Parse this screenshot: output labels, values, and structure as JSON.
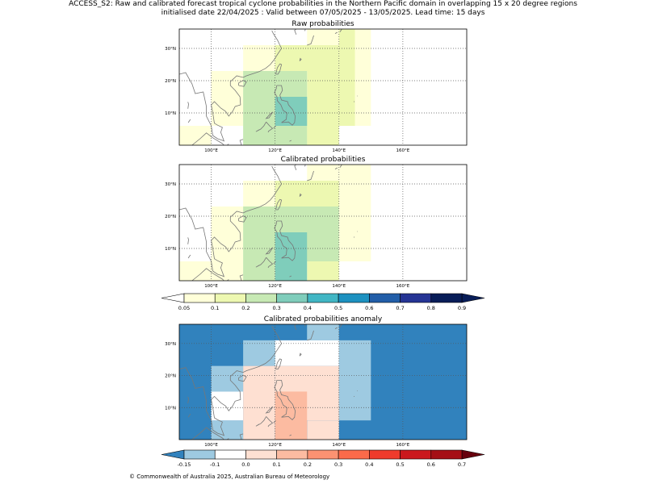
{
  "header": {
    "title_line1": "ACCESS_S2: Raw and calibrated forecast tropical cyclone probabilities in the Northern Pacific domain in overlapping 15 x 20 degree regions",
    "title_line2": "initialised date 22/04/2025 :  Valid between 07/05/2025 - 13/05/2025. Lead time: 15 days"
  },
  "footer": {
    "copyright": "© Commonwealth of Australia 2025, Australian Bureau of Meteorology"
  },
  "colors": {
    "prob_bins": [
      "#ffffd9",
      "#edf8b1",
      "#c7e9b4",
      "#7fcdbb",
      "#41b6c4",
      "#1d91c0",
      "#225ea8",
      "#253494",
      "#081d58"
    ],
    "anom_bins": [
      "#9ecae1",
      "#ffffff",
      "#fee0d2",
      "#fcbba1",
      "#fc9272",
      "#fb6a4a",
      "#ef3b2c",
      "#cb181d",
      "#a50f15"
    ],
    "anom_under": "#3182bd",
    "prob_over": "#081d58",
    "anom_over": "#67000d",
    "coastline": "#777777",
    "gridline": "#555555"
  },
  "chart_data": [
    {
      "type": "heatmap",
      "title": "Raw probabilities",
      "xlim": [
        90,
        180
      ],
      "ylim": [
        0,
        36
      ],
      "x_ticks": [
        100,
        120,
        140,
        160
      ],
      "x_tick_labels": [
        "100°E",
        "120°E",
        "140°E",
        "160°E"
      ],
      "y_ticks": [
        10,
        20,
        30
      ],
      "y_tick_labels": [
        "10°N",
        "20°N",
        "30°N"
      ],
      "grid": true,
      "cells": [
        {
          "lon": [
            90,
            100
          ],
          "lat": [
            0,
            6
          ],
          "value": 0.05
        },
        {
          "lon": [
            100,
            110
          ],
          "lat": [
            6,
            15
          ],
          "value": 0.05
        },
        {
          "lon": [
            100,
            110
          ],
          "lat": [
            15,
            23
          ],
          "value": 0.05
        },
        {
          "lon": [
            110,
            120
          ],
          "lat": [
            23,
            31
          ],
          "value": 0.05
        },
        {
          "lon": [
            140,
            150
          ],
          "lat": [
            6,
            36
          ],
          "value": 0.05
        },
        {
          "lon": [
            130,
            140
          ],
          "lat": [
            31,
            36
          ],
          "value": 0.05
        },
        {
          "lon": [
            120,
            140
          ],
          "lat": [
            23,
            31
          ],
          "value": 0.1
        },
        {
          "lon": [
            140,
            145
          ],
          "lat": [
            6,
            36
          ],
          "value": 0.1
        },
        {
          "lon": [
            130,
            140
          ],
          "lat": [
            0,
            23
          ],
          "value": 0.1
        },
        {
          "lon": [
            120,
            130
          ],
          "lat": [
            0,
            6
          ],
          "value": 0.1
        },
        {
          "lon": [
            110,
            130
          ],
          "lat": [
            0,
            23
          ],
          "value": 0.2
        },
        {
          "lon": [
            120,
            130
          ],
          "lat": [
            6,
            15
          ],
          "value": 0.3
        }
      ]
    },
    {
      "type": "heatmap",
      "title": "Calibrated probabilities",
      "xlim": [
        90,
        180
      ],
      "ylim": [
        0,
        36
      ],
      "x_ticks": [
        100,
        120,
        140,
        160
      ],
      "x_tick_labels": [
        "100°E",
        "120°E",
        "140°E",
        "160°E"
      ],
      "y_ticks": [
        10,
        20,
        30
      ],
      "y_tick_labels": [
        "10°N",
        "20°N",
        "30°N"
      ],
      "grid": true,
      "cells": [
        {
          "lon": [
            90,
            110
          ],
          "lat": [
            0,
            6
          ],
          "value": 0.05
        },
        {
          "lon": [
            100,
            110
          ],
          "lat": [
            6,
            23
          ],
          "value": 0.05
        },
        {
          "lon": [
            110,
            120
          ],
          "lat": [
            23,
            31
          ],
          "value": 0.05
        },
        {
          "lon": [
            140,
            150
          ],
          "lat": [
            6,
            36
          ],
          "value": 0.05
        },
        {
          "lon": [
            130,
            140
          ],
          "lat": [
            31,
            36
          ],
          "value": 0.05
        },
        {
          "lon": [
            120,
            140
          ],
          "lat": [
            23,
            31
          ],
          "value": 0.1
        },
        {
          "lon": [
            130,
            140
          ],
          "lat": [
            0,
            6
          ],
          "value": 0.1
        },
        {
          "lon": [
            110,
            140
          ],
          "lat": [
            6,
            23
          ],
          "value": 0.2
        },
        {
          "lon": [
            110,
            120
          ],
          "lat": [
            0,
            6
          ],
          "value": 0.2
        },
        {
          "lon": [
            120,
            130
          ],
          "lat": [
            0,
            15
          ],
          "value": 0.3
        }
      ]
    },
    {
      "type": "heatmap",
      "title": "Calibrated probabilities anomaly",
      "xlim": [
        90,
        180
      ],
      "ylim": [
        0,
        36
      ],
      "x_ticks": [
        100,
        120,
        140,
        160
      ],
      "x_tick_labels": [
        "100°E",
        "120°E",
        "140°E",
        "160°E"
      ],
      "y_ticks": [
        10,
        20,
        30
      ],
      "y_tick_labels": [
        "10°N",
        "20°N",
        "30°N"
      ],
      "grid": true,
      "background_value": -0.2,
      "cells": [
        {
          "lon": [
            100,
            110
          ],
          "lat": [
            15,
            23
          ],
          "value": -0.12
        },
        {
          "lon": [
            100,
            110
          ],
          "lat": [
            0,
            6
          ],
          "value": -0.12
        },
        {
          "lon": [
            110,
            120
          ],
          "lat": [
            23,
            31
          ],
          "value": -0.12
        },
        {
          "lon": [
            140,
            150
          ],
          "lat": [
            6,
            31
          ],
          "value": -0.12
        },
        {
          "lon": [
            130,
            140
          ],
          "lat": [
            31,
            36
          ],
          "value": -0.12
        },
        {
          "lon": [
            100,
            110
          ],
          "lat": [
            6,
            15
          ],
          "value": -0.05
        },
        {
          "lon": [
            120,
            140
          ],
          "lat": [
            23,
            31
          ],
          "value": -0.05
        },
        {
          "lon": [
            110,
            120
          ],
          "lat": [
            0,
            23
          ],
          "value": 0.05
        },
        {
          "lon": [
            120,
            140
          ],
          "lat": [
            6,
            23
          ],
          "value": 0.05
        },
        {
          "lon": [
            130,
            140
          ],
          "lat": [
            0,
            6
          ],
          "value": 0.05
        },
        {
          "lon": [
            120,
            130
          ],
          "lat": [
            0,
            15
          ],
          "value": 0.15
        }
      ]
    }
  ],
  "colorbars": [
    {
      "name": "probability",
      "boundaries": [
        0.05,
        0.1,
        0.2,
        0.3,
        0.4,
        0.5,
        0.6,
        0.7,
        0.8,
        0.9
      ],
      "tick_labels": [
        "0.05",
        "0.1",
        "0.2",
        "0.3",
        "0.4",
        "0.5",
        "0.6",
        "0.7",
        "0.8",
        "0.9"
      ],
      "extend": "both"
    },
    {
      "name": "anomaly",
      "boundaries": [
        -0.15,
        -0.1,
        0.0,
        0.1,
        0.2,
        0.3,
        0.4,
        0.5,
        0.6,
        0.7
      ],
      "tick_labels": [
        "-0.15",
        "-0.1",
        "0.0",
        "0.1",
        "0.2",
        "0.3",
        "0.4",
        "0.5",
        "0.6",
        "0.7"
      ],
      "extend": "both"
    }
  ]
}
